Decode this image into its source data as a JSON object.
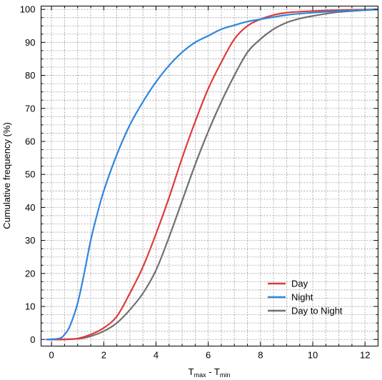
{
  "chart_data": {
    "type": "line",
    "title": "",
    "xlabel": {
      "base": "T",
      "sub1": "max",
      "mid": " - T",
      "sub2": "min"
    },
    "ylabel": "Cumulative frequency (%)",
    "xlim": [
      -0.4,
      12.5
    ],
    "ylim": [
      -2,
      101
    ],
    "x_ticks": [
      0,
      2,
      4,
      6,
      8,
      10,
      12
    ],
    "y_ticks": [
      0,
      10,
      20,
      30,
      40,
      50,
      60,
      70,
      80,
      90,
      100
    ],
    "x_minor_step": 0.5,
    "y_minor_step": 2.5,
    "grid": true,
    "legend_position": "bottom-right",
    "series": [
      {
        "name": "Day",
        "color": "#e03a3a",
        "x": [
          -0.2,
          0.5,
          1.0,
          1.5,
          2.0,
          2.5,
          3.0,
          3.5,
          4.0,
          4.5,
          5.0,
          5.5,
          6.0,
          6.5,
          7.0,
          7.5,
          8.0,
          8.5,
          9.0,
          10.0,
          11.0,
          12.5
        ],
        "y": [
          0,
          0,
          0.3,
          1.5,
          3.5,
          7,
          14,
          22,
          32,
          43,
          55,
          66,
          76,
          84,
          91,
          95,
          97,
          98.3,
          99,
          99.5,
          99.8,
          100
        ]
      },
      {
        "name": "Night",
        "color": "#2e86de",
        "x": [
          -0.2,
          0.3,
          0.5,
          0.7,
          1.0,
          1.25,
          1.5,
          1.75,
          2.0,
          2.5,
          3.0,
          3.5,
          4.0,
          4.5,
          5.0,
          5.5,
          6.0,
          6.5,
          7.0,
          7.5,
          8.0,
          9.0,
          10.0,
          11.0,
          12.5
        ],
        "y": [
          0,
          0.3,
          1.5,
          4,
          11,
          20,
          30,
          38,
          45,
          56,
          65,
          72,
          78,
          83,
          87,
          90,
          92,
          94,
          95.2,
          96.3,
          97,
          98.3,
          99,
          99.5,
          100
        ]
      },
      {
        "name": "Day to Night",
        "color": "#707070",
        "x": [
          -0.2,
          1.0,
          1.5,
          2.0,
          2.5,
          3.0,
          3.5,
          4.0,
          4.5,
          5.0,
          5.5,
          6.0,
          6.5,
          7.0,
          7.5,
          8.0,
          8.5,
          9.0,
          9.5,
          10.0,
          11.0,
          12.5
        ],
        "y": [
          0,
          0.2,
          1,
          2.5,
          5,
          9,
          14,
          21,
          31,
          42,
          53,
          63,
          72,
          80,
          87,
          91,
          94,
          96,
          97.2,
          98,
          99.2,
          100
        ]
      }
    ]
  }
}
